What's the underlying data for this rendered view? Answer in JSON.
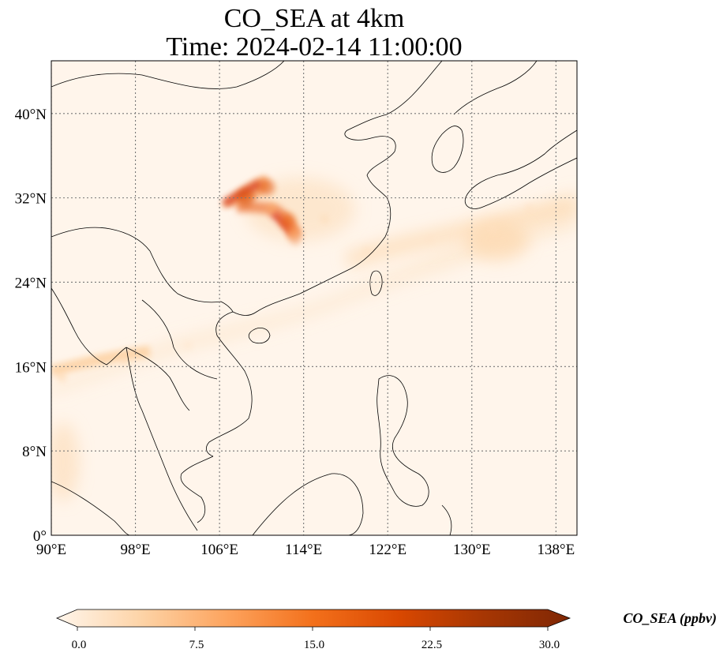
{
  "title": {
    "line1": "CO_SEA at 4km",
    "line2": "Time: 2024-02-14 11:00:00"
  },
  "map": {
    "extent": {
      "lon_min": 90,
      "lon_max": 140,
      "lat_min": 0,
      "lat_max": 45
    },
    "x_ticks": [
      {
        "lon": 90,
        "label": "90°E"
      },
      {
        "lon": 98,
        "label": "98°E"
      },
      {
        "lon": 106,
        "label": "106°E"
      },
      {
        "lon": 114,
        "label": "114°E"
      },
      {
        "lon": 122,
        "label": "122°E"
      },
      {
        "lon": 130,
        "label": "130°E"
      },
      {
        "lon": 138,
        "label": "138°E"
      }
    ],
    "y_ticks": [
      {
        "lat": 0,
        "label": "0°"
      },
      {
        "lat": 8,
        "label": "8°N"
      },
      {
        "lat": 16,
        "label": "16°N"
      },
      {
        "lat": 24,
        "label": "24°N"
      },
      {
        "lat": 32,
        "label": "32°N"
      },
      {
        "lat": 40,
        "label": "40°N"
      }
    ],
    "gridlines": true,
    "background_color": "#fff5eb",
    "coastline_color": "#000000"
  },
  "colorbar": {
    "label": "CO_SEA (ppbv)",
    "min": 0.0,
    "max": 30.0,
    "extend": "both",
    "ticks": [
      {
        "value": 0.0,
        "label": "0.0"
      },
      {
        "value": 7.5,
        "label": "7.5"
      },
      {
        "value": 15.0,
        "label": "15.0"
      },
      {
        "value": 22.5,
        "label": "22.5"
      },
      {
        "value": 30.0,
        "label": "30.0"
      }
    ],
    "colormap": [
      "#fff5eb",
      "#fdd3a6",
      "#fda35d",
      "#f3701b",
      "#d94801",
      "#a63603",
      "#7f2704"
    ]
  },
  "plumes": [
    {
      "lon": 108.5,
      "lat": 32.0,
      "value": 20
    },
    {
      "lon": 110.5,
      "lat": 33.0,
      "value": 18
    },
    {
      "lon": 112.5,
      "lat": 29.8,
      "value": 17
    },
    {
      "lon": 113.0,
      "lat": 28.8,
      "value": 12
    },
    {
      "lon": 111.0,
      "lat": 31.0,
      "value": 9
    },
    {
      "lon": 116.0,
      "lat": 30.0,
      "value": 4
    },
    {
      "lon": 120.0,
      "lat": 27.0,
      "value": 3
    },
    {
      "lon": 126.0,
      "lat": 28.0,
      "value": 2.5
    },
    {
      "lon": 132.0,
      "lat": 29.0,
      "value": 3
    },
    {
      "lon": 135.5,
      "lat": 31.0,
      "value": 3
    },
    {
      "lon": 91.0,
      "lat": 15.0,
      "value": 5
    },
    {
      "lon": 97.0,
      "lat": 16.5,
      "value": 4
    },
    {
      "lon": 103.0,
      "lat": 18.0,
      "value": 2.5
    },
    {
      "lon": 92.0,
      "lat": 6.0,
      "value": 2
    }
  ]
}
